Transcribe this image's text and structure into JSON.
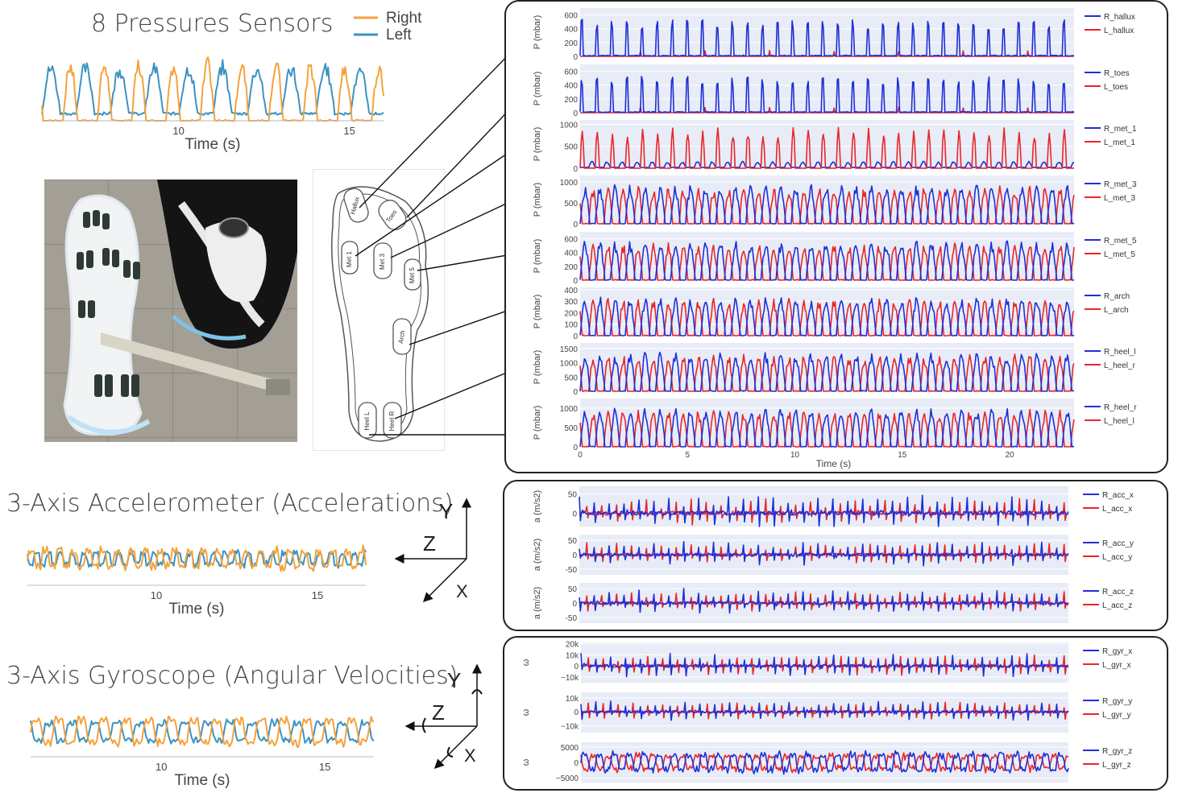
{
  "colors": {
    "right_orange": "#f5a23c",
    "left_blue": "#3b93c0",
    "plot_blue": "#1f2fd8",
    "plot_red": "#e8262a",
    "plot_bg": "#e8ecf6"
  },
  "icons": [
    "shoe-photo",
    "insole-diagram",
    "axes-icon"
  ],
  "sections": {
    "pressure_title": "8 Pressures Sensors",
    "accel_title": "3-Axis Accelerometer (Accelerations)",
    "gyro_title": "3-Axis Gyroscope (Angular Velocities)"
  },
  "insole_labels": [
    "Hallux",
    "Toes",
    "Met 1",
    "Met 3",
    "Met 5",
    "Arch",
    "Heel L",
    "Heel R"
  ],
  "axes_letters": {
    "accel": [
      "Y",
      "Z",
      "X"
    ],
    "gyro": [
      "Y",
      "Z",
      "X"
    ]
  },
  "chart_data": [
    {
      "id": "left-pressure",
      "type": "line",
      "xlabel": "Time (s)",
      "xticks": [
        10,
        15
      ],
      "xlim": [
        6,
        16
      ],
      "legend": [
        "Right",
        "Left"
      ],
      "series": [
        {
          "name": "Right"
        },
        {
          "name": "Left"
        }
      ]
    },
    {
      "id": "left-accel",
      "type": "line",
      "xlabel": "Time (s)",
      "xticks": [
        10,
        15
      ],
      "xlim": [
        6,
        16.5
      ]
    },
    {
      "id": "left-gyro",
      "type": "line",
      "xlabel": "Time (s)",
      "xticks": [
        10,
        15
      ],
      "xlim": [
        6,
        16.5
      ]
    },
    {
      "id": "pressure-grid",
      "type": "line",
      "xlabel": "Time (s)",
      "xticks": [
        0,
        5,
        10,
        15,
        20
      ],
      "xlim": [
        0,
        23
      ],
      "ylabel": "P (mbar)",
      "subplots": [
        {
          "legend": [
            "R_hallux",
            "L_hallux"
          ],
          "yticks": [
            0,
            200,
            400,
            600
          ],
          "ylim": [
            0,
            700
          ]
        },
        {
          "legend": [
            "R_toes",
            "L_toes"
          ],
          "yticks": [
            0,
            200,
            400,
            600
          ],
          "ylim": [
            0,
            700
          ]
        },
        {
          "legend": [
            "R_met_1",
            "L_met_1"
          ],
          "yticks": [
            0,
            500,
            1000
          ],
          "ylim": [
            0,
            1100
          ]
        },
        {
          "legend": [
            "R_met_3",
            "L_met_3"
          ],
          "yticks": [
            0,
            500,
            1000
          ],
          "ylim": [
            0,
            1150
          ]
        },
        {
          "legend": [
            "R_met_5",
            "L_met_5"
          ],
          "yticks": [
            0,
            200,
            400,
            600
          ],
          "ylim": [
            0,
            700
          ]
        },
        {
          "legend": [
            "R_arch",
            "L_arch"
          ],
          "yticks": [
            0,
            100,
            200,
            300,
            400
          ],
          "ylim": [
            0,
            420
          ]
        },
        {
          "legend": [
            "R_heel_l",
            "L_heel_r"
          ],
          "yticks": [
            0,
            500,
            1000,
            1500
          ],
          "ylim": [
            0,
            1700
          ]
        },
        {
          "legend": [
            "R_heel_r",
            "L_heel_l"
          ],
          "yticks": [
            0,
            500,
            1000
          ],
          "ylim": [
            0,
            1250
          ]
        }
      ]
    },
    {
      "id": "accel-grid",
      "type": "line",
      "ylabel": "a (m/s2)",
      "xlim": [
        0,
        23
      ],
      "subplots": [
        {
          "legend": [
            "R_acc_x",
            "L_acc_x"
          ],
          "yticks": [
            0,
            50
          ],
          "ylim": [
            -35,
            70
          ]
        },
        {
          "legend": [
            "R_acc_y",
            "L_acc_y"
          ],
          "yticks": [
            -50,
            0,
            50
          ],
          "ylim": [
            -70,
            70
          ]
        },
        {
          "legend": [
            "R_acc_z",
            "L_acc_z"
          ],
          "yticks": [
            -50,
            0,
            50
          ],
          "ylim": [
            -70,
            70
          ]
        }
      ]
    },
    {
      "id": "gyro-grid",
      "type": "line",
      "ylabel": "ω",
      "xlim": [
        0,
        23
      ],
      "subplots": [
        {
          "legend": [
            "R_gyr_x",
            "L_gyr_x"
          ],
          "yticks": [
            "−10k",
            "0",
            "10k",
            "20k"
          ],
          "ylim": [
            -15000,
            21000
          ]
        },
        {
          "legend": [
            "R_gyr_y",
            "L_gyr_y"
          ],
          "yticks": [
            "−10k",
            "0",
            "10k"
          ],
          "ylim": [
            -15000,
            14000
          ]
        },
        {
          "legend": [
            "R_gyr_z",
            "L_gyr_z"
          ],
          "yticks": [
            "−5000",
            "0",
            "5000"
          ],
          "ylim": [
            -6500,
            6500
          ]
        }
      ]
    }
  ]
}
